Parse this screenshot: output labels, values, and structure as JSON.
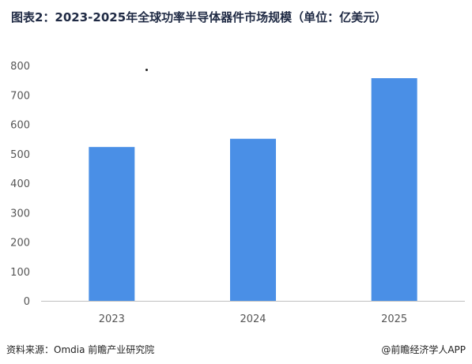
{
  "title": "图表2：2023-2025年全球功率半导体器件市场规模（单位：亿美元）",
  "footer": {
    "source": "资料来源：Omdia  前瞻产业研究院",
    "credit": "@前瞻经济学人APP"
  },
  "colors": {
    "bar": "#4a8fe6",
    "axis": "#bfbfbf",
    "tick_text": "#555555"
  },
  "chart_data": {
    "type": "bar",
    "title": "图表2：2023-2025年全球功率半导体器件市场规模（单位：亿美元）",
    "categories": [
      "2023",
      "2024",
      "2025"
    ],
    "values": [
      523,
      551,
      757
    ],
    "ylim": [
      0,
      800
    ],
    "yticks": [
      "0",
      "100",
      "200",
      "300",
      "400",
      "500",
      "600",
      "700",
      "800"
    ],
    "grid": false,
    "legend": "none"
  }
}
